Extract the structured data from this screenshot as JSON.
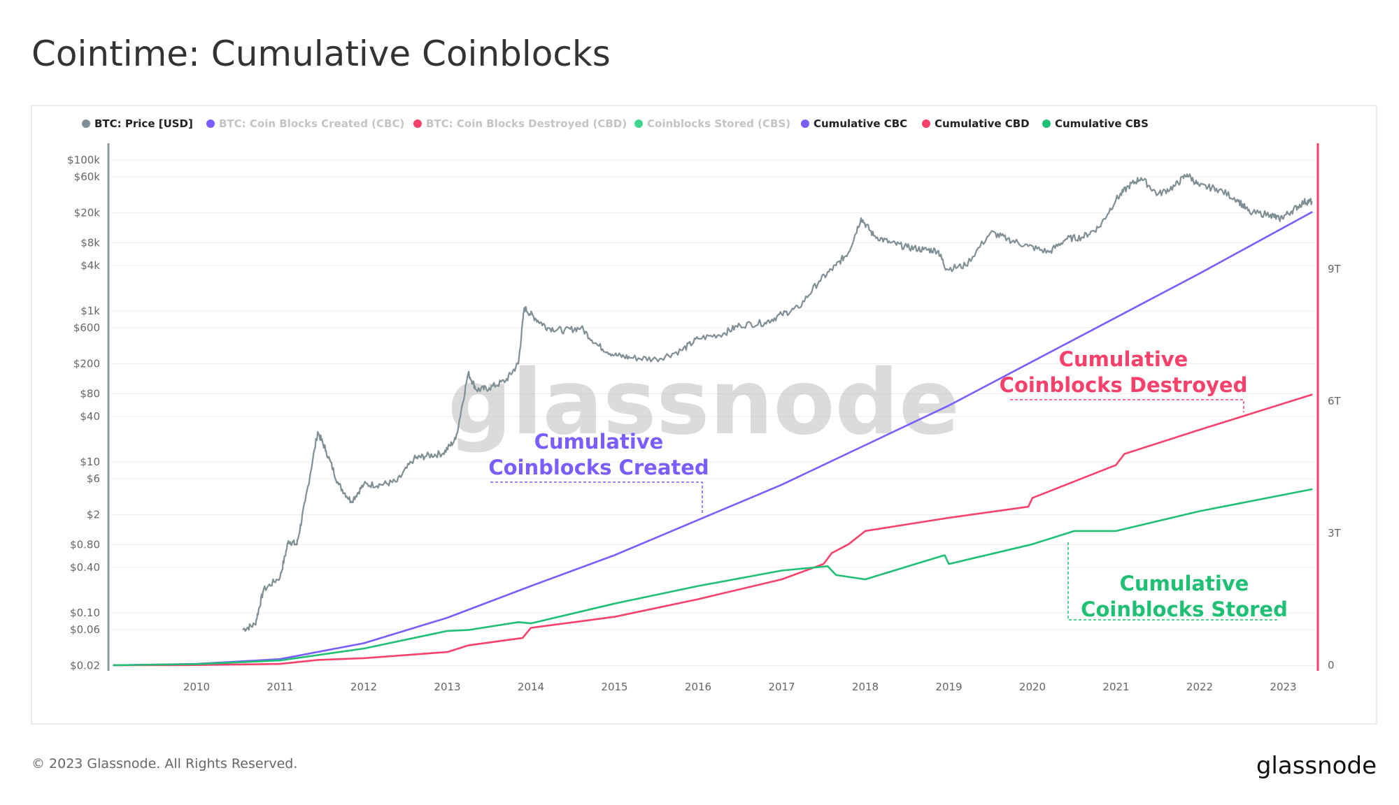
{
  "title": "Cointime: Cumulative Coinblocks",
  "footer": {
    "copyright": "© 2023 Glassnode. All Rights Reserved.",
    "logo": "glassnode"
  },
  "colors": {
    "price": "#7f8f96",
    "cbc": "#7b5cff",
    "cbd": "#f7416a",
    "cbs": "#1fbf74",
    "cbs_light": "#3dd68c",
    "faded_text": "#c4c4c4",
    "text": "#222222"
  },
  "chart_data": {
    "type": "line",
    "title": "Cointime: Cumulative Coinblocks",
    "watermark": "glassnode",
    "legend": [
      {
        "label": "BTC: Price [USD]",
        "color": "#7f8f96",
        "active": true
      },
      {
        "label": "BTC: Coin Blocks Created (CBC)",
        "color": "#7b5cff",
        "active": false
      },
      {
        "label": "BTC: Coin Blocks Destroyed (CBD)",
        "color": "#f7416a",
        "active": false
      },
      {
        "label": "Coinblocks Stored (CBS)",
        "color": "#3dd68c",
        "active": false
      },
      {
        "label": "Cumulative CBC",
        "color": "#7b5cff",
        "active": true
      },
      {
        "label": "Cumulative CBD",
        "color": "#f7416a",
        "active": true
      },
      {
        "label": "Cumulative CBS",
        "color": "#1fbf74",
        "active": true
      }
    ],
    "legend_position": "top-left",
    "x_ticks": [
      "2010",
      "2011",
      "2012",
      "2013",
      "2014",
      "2015",
      "2016",
      "2017",
      "2018",
      "2019",
      "2020",
      "2021",
      "2022",
      "2023"
    ],
    "y_left": {
      "scale": "log",
      "range": [
        0.02,
        100000
      ],
      "ticks": [
        {
          "v": 100000,
          "l": "$100k"
        },
        {
          "v": 60000,
          "l": "$60k"
        },
        {
          "v": 20000,
          "l": "$20k"
        },
        {
          "v": 8000,
          "l": "$8k"
        },
        {
          "v": 4000,
          "l": "$4k"
        },
        {
          "v": 1000,
          "l": "$1k"
        },
        {
          "v": 600,
          "l": "$600"
        },
        {
          "v": 200,
          "l": "$200"
        },
        {
          "v": 80,
          "l": "$80"
        },
        {
          "v": 40,
          "l": "$40"
        },
        {
          "v": 10,
          "l": "$10"
        },
        {
          "v": 6,
          "l": "$6"
        },
        {
          "v": 2,
          "l": "$2"
        },
        {
          "v": 0.8,
          "l": "$0.80"
        },
        {
          "v": 0.4,
          "l": "$0.40"
        },
        {
          "v": 0.1,
          "l": "$0.10"
        },
        {
          "v": 0.06,
          "l": "$0.06"
        },
        {
          "v": 0.02,
          "l": "$0.02"
        }
      ]
    },
    "y_right": {
      "scale": "linear",
      "unit": "T",
      "range": [
        0,
        11.5
      ],
      "ticks": [
        {
          "v": 0,
          "l": "0"
        },
        {
          "v": 3,
          "l": "3T"
        },
        {
          "v": 6,
          "l": "6T"
        },
        {
          "v": 9,
          "l": "9T"
        }
      ]
    },
    "series": [
      {
        "name": "BTC: Price [USD]",
        "axis": "left",
        "x": [
          2010.55,
          2010.7,
          2010.8,
          2011.0,
          2011.1,
          2011.2,
          2011.3,
          2011.45,
          2011.55,
          2011.7,
          2011.85,
          2012.0,
          2012.2,
          2012.4,
          2012.6,
          2012.75,
          2012.95,
          2013.1,
          2013.25,
          2013.35,
          2013.5,
          2013.7,
          2013.85,
          2013.92,
          2014.05,
          2014.2,
          2014.4,
          2014.6,
          2014.8,
          2015.0,
          2015.2,
          2015.5,
          2015.8,
          2016.0,
          2016.3,
          2016.5,
          2016.8,
          2017.0,
          2017.2,
          2017.45,
          2017.65,
          2017.8,
          2017.95,
          2018.1,
          2018.3,
          2018.5,
          2018.7,
          2018.87,
          2018.97,
          2019.2,
          2019.5,
          2019.7,
          2019.95,
          2020.2,
          2020.4,
          2020.6,
          2020.8,
          2021.0,
          2021.15,
          2021.3,
          2021.5,
          2021.7,
          2021.85,
          2022.0,
          2022.2,
          2022.45,
          2022.6,
          2022.85,
          2022.95,
          2023.1,
          2023.25,
          2023.35
        ],
        "y": [
          0.06,
          0.07,
          0.2,
          0.3,
          0.9,
          0.8,
          3,
          25,
          14,
          5,
          3,
          5,
          5,
          5.5,
          11,
          12,
          13,
          20,
          150,
          90,
          95,
          120,
          200,
          1100,
          800,
          600,
          550,
          600,
          350,
          260,
          240,
          230,
          300,
          430,
          500,
          650,
          700,
          900,
          1100,
          2500,
          4000,
          6000,
          17000,
          10000,
          8000,
          7000,
          6500,
          6300,
          3600,
          4000,
          11000,
          9000,
          7200,
          6000,
          9000,
          9500,
          13000,
          30000,
          45000,
          58000,
          35000,
          45000,
          65000,
          45000,
          42000,
          30000,
          20000,
          19000,
          16500,
          21000,
          28000,
          28000
        ]
      },
      {
        "name": "Cumulative CBC",
        "axis": "right",
        "x": [
          2009.0,
          2010.0,
          2011.0,
          2012.0,
          2013.0,
          2014.0,
          2015.0,
          2016.0,
          2017.0,
          2018.0,
          2019.0,
          2020.0,
          2021.0,
          2022.0,
          2023.35
        ],
        "y": [
          0,
          0.03,
          0.14,
          0.5,
          1.08,
          1.8,
          2.5,
          3.3,
          4.1,
          5.0,
          5.9,
          6.9,
          7.9,
          8.9,
          10.3
        ]
      },
      {
        "name": "Cumulative CBD",
        "axis": "right",
        "x": [
          2009.0,
          2010.0,
          2011.0,
          2011.45,
          2012.0,
          2013.0,
          2013.25,
          2013.9,
          2014.0,
          2015.0,
          2016.0,
          2017.0,
          2017.5,
          2017.6,
          2017.8,
          2018.0,
          2018.5,
          2019.0,
          2019.95,
          2020.0,
          2021.0,
          2021.1,
          2022.0,
          2023.35
        ],
        "y": [
          0,
          0.005,
          0.03,
          0.12,
          0.16,
          0.3,
          0.45,
          0.62,
          0.85,
          1.1,
          1.5,
          1.95,
          2.3,
          2.55,
          2.75,
          3.05,
          3.2,
          3.35,
          3.6,
          3.8,
          4.55,
          4.8,
          5.35,
          6.15
        ]
      },
      {
        "name": "Cumulative CBS",
        "axis": "right",
        "x": [
          2009.0,
          2010.0,
          2011.0,
          2012.0,
          2013.0,
          2013.25,
          2013.85,
          2014.0,
          2015.0,
          2016.0,
          2017.0,
          2017.55,
          2017.65,
          2018.0,
          2018.6,
          2018.95,
          2019.0,
          2020.0,
          2020.5,
          2021.0,
          2022.0,
          2023.35
        ],
        "y": [
          0,
          0.025,
          0.11,
          0.38,
          0.78,
          0.8,
          0.98,
          0.95,
          1.4,
          1.8,
          2.15,
          2.25,
          2.05,
          1.95,
          2.3,
          2.5,
          2.3,
          2.75,
          3.05,
          3.05,
          3.5,
          4.0
        ]
      }
    ],
    "annotations": [
      {
        "lines": [
          "Cumulative",
          "Coinblocks Created"
        ],
        "color": "#7b5cff"
      },
      {
        "lines": [
          "Cumulative",
          "Coinblocks Destroyed"
        ],
        "color": "#f7416a"
      },
      {
        "lines": [
          "Cumulative",
          "Coinblocks Stored"
        ],
        "color": "#1fbf74"
      }
    ]
  }
}
